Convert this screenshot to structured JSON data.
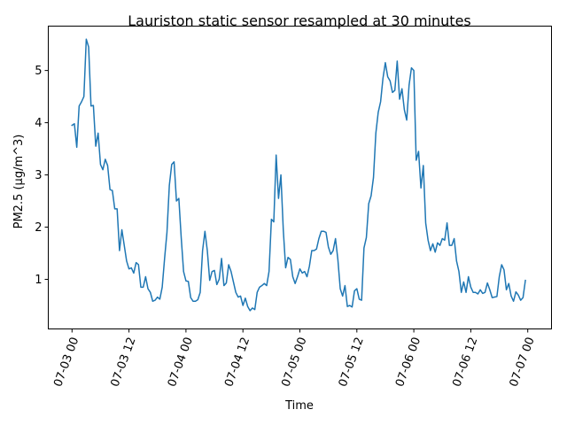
{
  "chart_data": {
    "type": "line",
    "title": "Lauriston static sensor resampled at 30 minutes",
    "xlabel": "Time",
    "ylabel": "PM2.5 (μg/m^3)",
    "x_start": "2023-07-03 00:00",
    "x_step_minutes": 30,
    "xlim": [
      "2023-07-02 19:00",
      "2023-07-07 05:00"
    ],
    "ylim": [
      0.05,
      5.85
    ],
    "x_ticks": [
      {
        "label": "07-03 00",
        "value": "2023-07-03 00:00"
      },
      {
        "label": "07-03 12",
        "value": "2023-07-03 12:00"
      },
      {
        "label": "07-04 00",
        "value": "2023-07-04 00:00"
      },
      {
        "label": "07-04 12",
        "value": "2023-07-04 12:00"
      },
      {
        "label": "07-05 00",
        "value": "2023-07-05 00:00"
      },
      {
        "label": "07-05 12",
        "value": "2023-07-05 12:00"
      },
      {
        "label": "07-06 00",
        "value": "2023-07-06 00:00"
      },
      {
        "label": "07-06 12",
        "value": "2023-07-06 12:00"
      },
      {
        "label": "07-07 00",
        "value": "2023-07-07 00:00"
      }
    ],
    "y_ticks": [
      {
        "label": "1",
        "value": 1
      },
      {
        "label": "2",
        "value": 2
      },
      {
        "label": "3",
        "value": 3
      },
      {
        "label": "4",
        "value": 4
      },
      {
        "label": "5",
        "value": 5
      }
    ],
    "grid": false,
    "series": [
      {
        "color": "#1f77b4",
        "values": [
          3.95,
          3.98,
          3.53,
          4.32,
          4.4,
          4.5,
          5.6,
          5.45,
          4.32,
          4.33,
          3.55,
          3.8,
          3.2,
          3.1,
          3.3,
          3.18,
          2.72,
          2.7,
          2.35,
          2.35,
          1.55,
          1.95,
          1.65,
          1.35,
          1.2,
          1.22,
          1.12,
          1.32,
          1.28,
          0.85,
          0.85,
          1.05,
          0.82,
          0.75,
          0.58,
          0.6,
          0.66,
          0.62,
          0.85,
          1.4,
          1.9,
          2.8,
          3.2,
          3.25,
          2.5,
          2.55,
          1.8,
          1.15,
          0.97,
          0.96,
          0.65,
          0.58,
          0.58,
          0.61,
          0.75,
          1.55,
          1.92,
          1.55,
          0.98,
          1.15,
          1.17,
          0.9,
          1.0,
          1.4,
          0.88,
          0.93,
          1.28,
          1.15,
          0.95,
          0.75,
          0.66,
          0.68,
          0.5,
          0.64,
          0.48,
          0.4,
          0.45,
          0.42,
          0.75,
          0.85,
          0.88,
          0.92,
          0.88,
          1.15,
          2.15,
          2.1,
          3.38,
          2.55,
          3.0,
          1.95,
          1.22,
          1.42,
          1.38,
          1.05,
          0.92,
          1.05,
          1.2,
          1.12,
          1.15,
          1.05,
          1.25,
          1.55,
          1.55,
          1.58,
          1.78,
          1.92,
          1.92,
          1.9,
          1.62,
          1.48,
          1.55,
          1.78,
          1.38,
          0.82,
          0.68,
          0.88,
          0.48,
          0.5,
          0.47,
          0.78,
          0.82,
          0.62,
          0.6,
          1.6,
          1.8,
          2.45,
          2.6,
          2.95,
          3.8,
          4.2,
          4.4,
          4.85,
          5.15,
          4.88,
          4.8,
          4.58,
          4.62,
          5.18,
          4.45,
          4.65,
          4.25,
          4.05,
          4.72,
          5.05,
          5.0,
          3.28,
          3.45,
          2.75,
          3.18,
          2.08,
          1.75,
          1.55,
          1.68,
          1.52,
          1.7,
          1.65,
          1.78,
          1.75,
          2.08,
          1.65,
          1.65,
          1.78,
          1.35,
          1.15,
          0.75,
          0.95,
          0.75,
          1.05,
          0.85,
          0.75,
          0.75,
          0.72,
          0.8,
          0.73,
          0.75,
          0.93,
          0.8,
          0.65,
          0.66,
          0.67,
          1.05,
          1.28,
          1.18,
          0.8,
          0.92,
          0.68,
          0.58,
          0.76,
          0.7,
          0.6,
          0.65,
          0.98
        ]
      }
    ]
  }
}
